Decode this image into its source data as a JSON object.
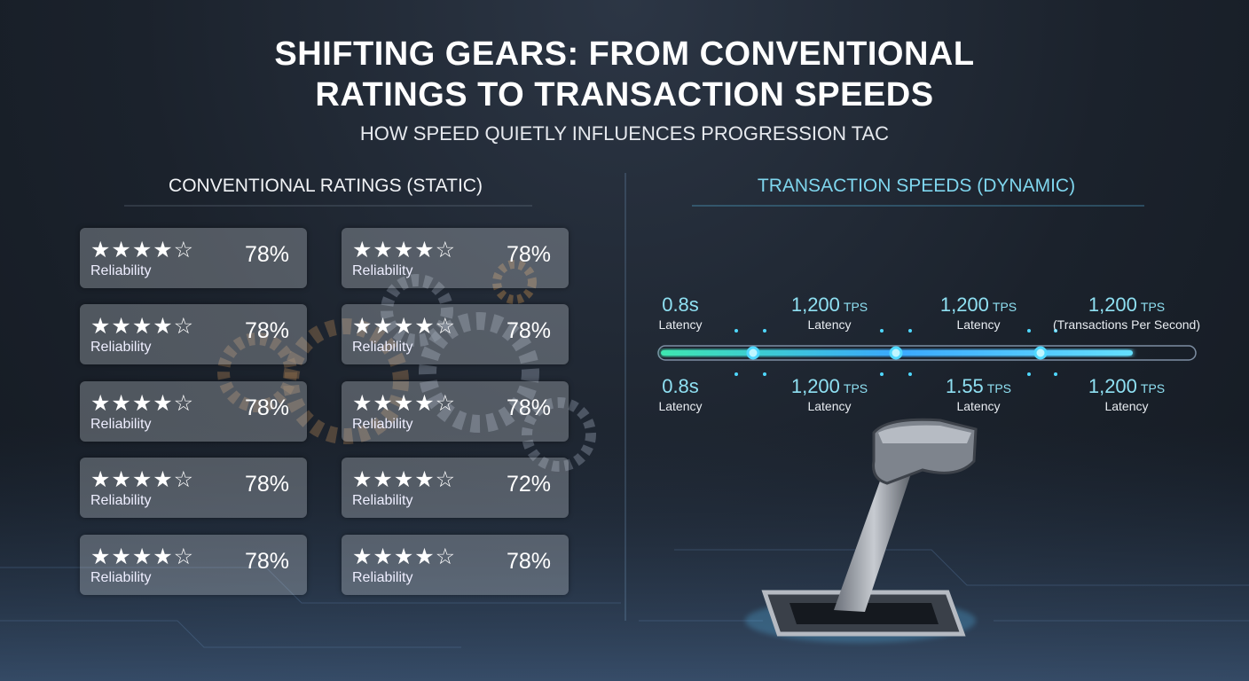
{
  "header": {
    "title_lines": [
      "SHIFTING GEARS: FROM CONVENTIONAL",
      "RATINGS TO TRANSACTION SPEEDS"
    ],
    "subtitle": "HOW SPEED QUIETLY INFLUENCES PROGRESSION TAC"
  },
  "left": {
    "heading": "CONVENTIONAL RATINGS (STATIC)",
    "cards": [
      {
        "stars": "★★★★☆",
        "value": "78%",
        "label": "Reliability"
      },
      {
        "stars": "★★★★☆",
        "value": "78%",
        "label": "Reliability"
      },
      {
        "stars": "★★★★☆",
        "value": "78%",
        "label": "Reliability"
      },
      {
        "stars": "★★★★☆",
        "value": "78%",
        "label": "Reliability"
      },
      {
        "stars": "★★★★☆",
        "value": "78%",
        "label": "Reliability"
      },
      {
        "stars": "★★★★☆",
        "value": "78%",
        "label": "Reliability"
      },
      {
        "stars": "★★★★☆",
        "value": "78%",
        "label": "Reliability"
      },
      {
        "stars": "★★★★☆",
        "value": "72%",
        "label": "Reliability"
      },
      {
        "stars": "★★★★☆",
        "value": "78%",
        "label": "Reliability"
      },
      {
        "stars": "★★★★☆",
        "value": "78%",
        "label": "Reliability"
      }
    ]
  },
  "right": {
    "heading": "TRANSACTION SPEEDS (DYNAMIC)",
    "top_metrics": [
      {
        "value": "0.8s",
        "label": "Latency"
      },
      {
        "value": "1,200",
        "unit": "TPS",
        "label": "Latency"
      },
      {
        "value": "1,200",
        "unit": "TPS",
        "label": "Latency"
      },
      {
        "value": "1,200",
        "unit": "TPS",
        "label": "(Transactions Per Second)"
      }
    ],
    "bottom_metrics": [
      {
        "value": "0.8s",
        "label": "Latency"
      },
      {
        "value": "1,200",
        "unit": "TPS",
        "label": "Latency"
      },
      {
        "value": "1.55",
        "unit": "TPS",
        "label": "Latency"
      },
      {
        "value": "1,200",
        "unit": "TPS",
        "label": "Latency"
      }
    ]
  }
}
